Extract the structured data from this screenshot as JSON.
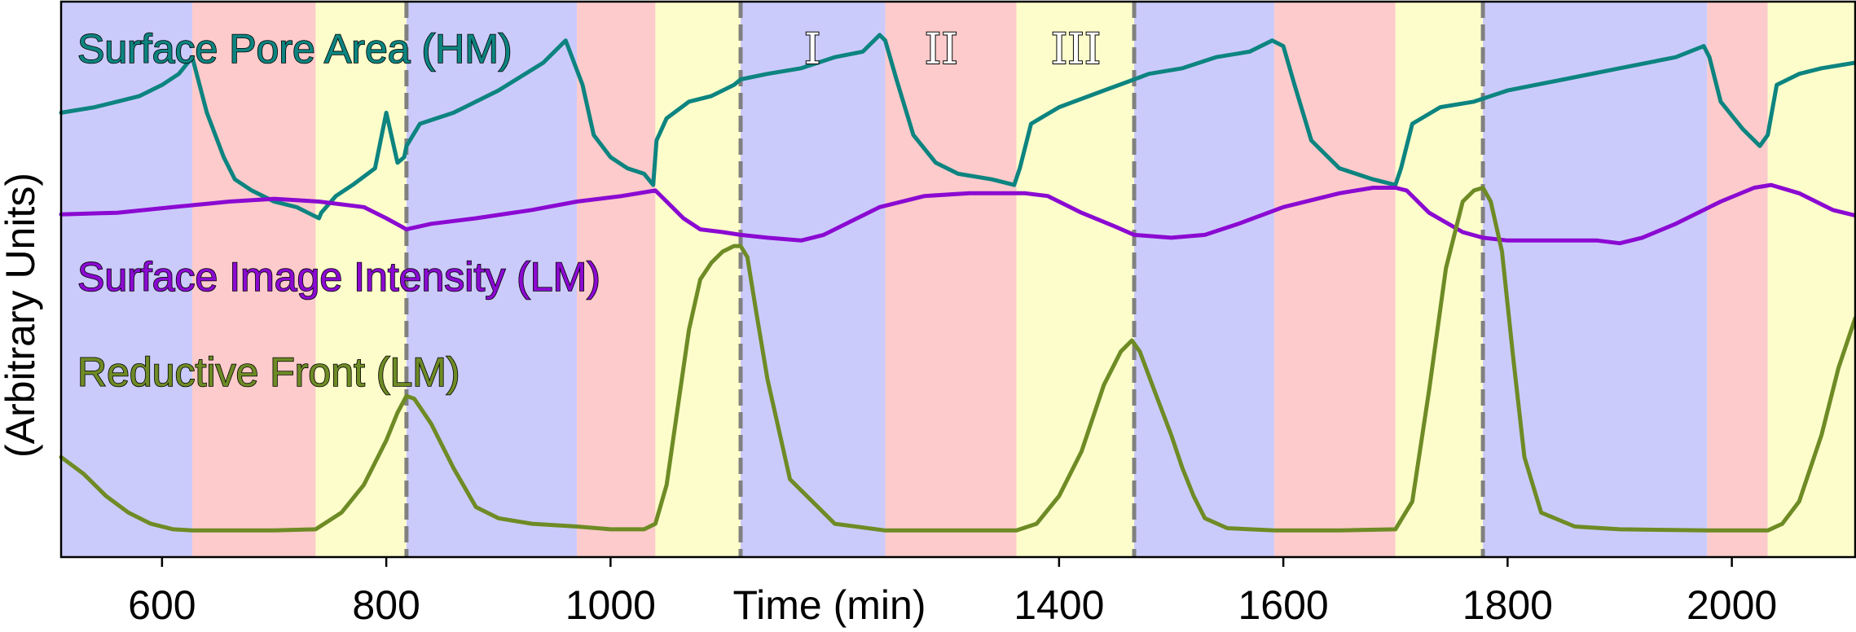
{
  "chart_data": {
    "type": "line",
    "xlabel": "Time (min)",
    "ylabel": "(Arbitrary Units)",
    "xlim": [
      510,
      2110
    ],
    "ylim": [
      0,
      1
    ],
    "xticks": [
      600,
      800,
      1000,
      1400,
      1600,
      1800,
      2000
    ],
    "xtick_labels": [
      "600",
      "800",
      "1000",
      "1400",
      "1600",
      "1800",
      "2000"
    ],
    "grid": false,
    "phase_colors": {
      "I": "#cbcbfb",
      "II": "#fdcbcb",
      "III": "#fdfdcb"
    },
    "phase_labels": [
      "I",
      "II",
      "III"
    ],
    "phase_label_x": [
      1180,
      1295,
      1415
    ],
    "phase_bands": [
      {
        "phase": "I",
        "start": 510,
        "end": 627
      },
      {
        "phase": "II",
        "start": 627,
        "end": 737
      },
      {
        "phase": "III",
        "start": 737,
        "end": 818
      },
      {
        "phase": "I",
        "start": 818,
        "end": 970
      },
      {
        "phase": "II",
        "start": 970,
        "end": 1040
      },
      {
        "phase": "III",
        "start": 1040,
        "end": 1116
      },
      {
        "phase": "I",
        "start": 1116,
        "end": 1245
      },
      {
        "phase": "II",
        "start": 1245,
        "end": 1362
      },
      {
        "phase": "III",
        "start": 1362,
        "end": 1467
      },
      {
        "phase": "I",
        "start": 1467,
        "end": 1592
      },
      {
        "phase": "II",
        "start": 1592,
        "end": 1700
      },
      {
        "phase": "III",
        "start": 1700,
        "end": 1778
      },
      {
        "phase": "I",
        "start": 1778,
        "end": 1978
      },
      {
        "phase": "II",
        "start": 1978,
        "end": 2032
      },
      {
        "phase": "III",
        "start": 2032,
        "end": 2110
      }
    ],
    "dashed_lines": [
      818,
      1116,
      1467,
      1778
    ],
    "series": [
      {
        "name": "Surface Pore Area (HM)",
        "color": "#0d8480",
        "x": [
          510,
          540,
          560,
          580,
          600,
          615,
          627,
          640,
          655,
          665,
          680,
          700,
          720,
          740,
          742,
          755,
          770,
          790,
          800,
          810,
          816,
          818,
          830,
          860,
          900,
          940,
          960,
          975,
          985,
          1000,
          1015,
          1030,
          1038,
          1041,
          1050,
          1070,
          1090,
          1110,
          1116,
          1140,
          1170,
          1200,
          1225,
          1240,
          1245,
          1255,
          1270,
          1290,
          1310,
          1340,
          1360,
          1365,
          1375,
          1400,
          1440,
          1467,
          1480,
          1510,
          1540,
          1570,
          1590,
          1600,
          1610,
          1625,
          1650,
          1680,
          1700,
          1705,
          1715,
          1740,
          1770,
          1800,
          1850,
          1900,
          1950,
          1975,
          1980,
          1990,
          2010,
          2025,
          2032,
          2040,
          2060,
          2080,
          2110
        ],
        "y": [
          0.8,
          0.81,
          0.82,
          0.83,
          0.85,
          0.87,
          0.9,
          0.8,
          0.72,
          0.68,
          0.66,
          0.64,
          0.63,
          0.61,
          0.62,
          0.65,
          0.67,
          0.7,
          0.8,
          0.71,
          0.72,
          0.74,
          0.78,
          0.8,
          0.84,
          0.89,
          0.93,
          0.85,
          0.76,
          0.72,
          0.7,
          0.69,
          0.67,
          0.75,
          0.79,
          0.82,
          0.83,
          0.85,
          0.86,
          0.87,
          0.88,
          0.9,
          0.91,
          0.94,
          0.93,
          0.86,
          0.76,
          0.71,
          0.69,
          0.68,
          0.67,
          0.7,
          0.78,
          0.81,
          0.84,
          0.86,
          0.87,
          0.88,
          0.9,
          0.91,
          0.93,
          0.92,
          0.85,
          0.75,
          0.7,
          0.68,
          0.67,
          0.7,
          0.78,
          0.81,
          0.82,
          0.84,
          0.86,
          0.88,
          0.9,
          0.92,
          0.9,
          0.82,
          0.77,
          0.74,
          0.76,
          0.85,
          0.87,
          0.88,
          0.89
        ]
      },
      {
        "name": "Surface Image Intensity (LM)",
        "color": "#8b0ad2",
        "x": [
          510,
          560,
          610,
          660,
          700,
          740,
          780,
          800,
          818,
          840,
          880,
          930,
          970,
          1010,
          1040,
          1050,
          1065,
          1080,
          1100,
          1116,
          1140,
          1170,
          1190,
          1210,
          1240,
          1280,
          1320,
          1350,
          1370,
          1390,
          1420,
          1450,
          1467,
          1500,
          1530,
          1560,
          1600,
          1650,
          1680,
          1700,
          1710,
          1730,
          1760,
          1778,
          1800,
          1840,
          1880,
          1900,
          1920,
          1950,
          1990,
          2020,
          2035,
          2060,
          2090,
          2110
        ],
        "y": [
          0.617,
          0.62,
          0.63,
          0.64,
          0.645,
          0.64,
          0.63,
          0.61,
          0.59,
          0.6,
          0.61,
          0.625,
          0.64,
          0.65,
          0.66,
          0.64,
          0.61,
          0.59,
          0.585,
          0.58,
          0.575,
          0.57,
          0.58,
          0.6,
          0.63,
          0.65,
          0.655,
          0.655,
          0.655,
          0.65,
          0.62,
          0.595,
          0.58,
          0.575,
          0.58,
          0.6,
          0.63,
          0.655,
          0.665,
          0.665,
          0.66,
          0.62,
          0.585,
          0.575,
          0.57,
          0.57,
          0.57,
          0.565,
          0.575,
          0.6,
          0.64,
          0.665,
          0.67,
          0.655,
          0.625,
          0.615
        ]
      },
      {
        "name": "Reductive Front (LM)",
        "color": "#6e8b25",
        "x": [
          510,
          530,
          550,
          570,
          590,
          610,
          627,
          650,
          700,
          737,
          760,
          780,
          800,
          810,
          818,
          825,
          840,
          860,
          880,
          900,
          930,
          970,
          1000,
          1030,
          1040,
          1050,
          1060,
          1070,
          1080,
          1090,
          1100,
          1110,
          1116,
          1122,
          1130,
          1140,
          1160,
          1200,
          1245,
          1300,
          1362,
          1380,
          1400,
          1420,
          1440,
          1455,
          1465,
          1472,
          1485,
          1500,
          1510,
          1520,
          1530,
          1550,
          1592,
          1650,
          1700,
          1715,
          1730,
          1745,
          1760,
          1770,
          1778,
          1785,
          1795,
          1805,
          1815,
          1830,
          1860,
          1900,
          1978,
          2032,
          2045,
          2060,
          2080,
          2095,
          2110
        ],
        "y": [
          0.18,
          0.15,
          0.11,
          0.08,
          0.06,
          0.05,
          0.048,
          0.048,
          0.048,
          0.05,
          0.08,
          0.13,
          0.21,
          0.26,
          0.29,
          0.285,
          0.24,
          0.16,
          0.09,
          0.07,
          0.06,
          0.055,
          0.05,
          0.05,
          0.06,
          0.13,
          0.27,
          0.41,
          0.5,
          0.53,
          0.55,
          0.56,
          0.56,
          0.54,
          0.44,
          0.32,
          0.14,
          0.06,
          0.048,
          0.048,
          0.048,
          0.06,
          0.11,
          0.19,
          0.31,
          0.37,
          0.39,
          0.37,
          0.3,
          0.22,
          0.16,
          0.11,
          0.07,
          0.052,
          0.048,
          0.048,
          0.05,
          0.1,
          0.3,
          0.52,
          0.64,
          0.66,
          0.665,
          0.64,
          0.55,
          0.36,
          0.18,
          0.08,
          0.055,
          0.05,
          0.048,
          0.048,
          0.06,
          0.1,
          0.22,
          0.34,
          0.43
        ]
      }
    ]
  }
}
